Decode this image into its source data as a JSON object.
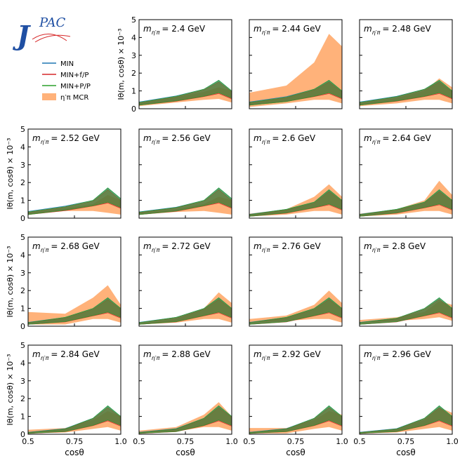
{
  "chart_data": {
    "type": "band",
    "logo": [
      "J",
      "PAC"
    ],
    "title_symbol": "m",
    "title_subscript": "η′π",
    "ylabel": "Iθ(m, cosθ) × 10⁻³",
    "xlabel": "cosθ",
    "xlim": [
      0.5,
      1
    ],
    "xticks": [
      0.5,
      0.75,
      {
        "value": 1,
        "label": "1.0"
      }
    ],
    "ylim": [
      0,
      5
    ],
    "yticks": [
      0,
      1,
      2,
      3,
      4,
      5
    ],
    "x": [
      0.5,
      0.7,
      0.85,
      0.93,
      1
    ],
    "legend": [
      {
        "name": "MIN",
        "color": "#1f77b4"
      },
      {
        "name": "MIN+f/P",
        "color": "#d62728"
      },
      {
        "name": "MIN+P/P",
        "color": "#2ca02c"
      },
      {
        "name": "η′π MCR",
        "color": "#ffb27a"
      }
    ],
    "panels": [
      {
        "title": "= 2.4 GeV",
        "series": [
          {
            "lower": [
              0.22,
              0.45,
              0.7,
              0.9,
              0.6
            ],
            "upper": [
              0.38,
              0.72,
              1.1,
              1.6,
              1.0
            ]
          },
          {
            "lower": [
              0.2,
              0.42,
              0.68,
              0.85,
              0.55
            ],
            "upper": [
              0.33,
              0.66,
              1.05,
              1.5,
              0.95
            ]
          },
          {
            "lower": [
              0.2,
              0.44,
              0.7,
              0.9,
              0.6
            ],
            "upper": [
              0.35,
              0.7,
              1.1,
              1.6,
              1.0
            ]
          },
          {
            "lower": [
              0.15,
              0.35,
              0.5,
              0.55,
              0.35
            ],
            "upper": [
              0.3,
              0.65,
              0.95,
              1.2,
              1.0
            ]
          }
        ]
      },
      {
        "title": "= 2.44 GeV",
        "series": [
          {
            "lower": [
              0.22,
              0.42,
              0.7,
              0.9,
              0.6
            ],
            "upper": [
              0.38,
              0.68,
              1.1,
              1.6,
              1.0
            ]
          },
          {
            "lower": [
              0.2,
              0.4,
              0.68,
              0.85,
              0.55
            ],
            "upper": [
              0.33,
              0.62,
              1.05,
              1.5,
              0.95
            ]
          },
          {
            "lower": [
              0.2,
              0.4,
              0.7,
              0.9,
              0.6
            ],
            "upper": [
              0.35,
              0.65,
              1.1,
              1.6,
              1.0
            ]
          },
          {
            "lower": [
              0.1,
              0.3,
              0.5,
              0.5,
              0.3
            ],
            "upper": [
              0.9,
              1.3,
              2.6,
              4.2,
              3.5
            ]
          }
        ]
      },
      {
        "title": "= 2.48 GeV",
        "series": [
          {
            "lower": [
              0.22,
              0.45,
              0.7,
              0.9,
              0.6
            ],
            "upper": [
              0.38,
              0.7,
              1.1,
              1.6,
              1.0
            ]
          },
          {
            "lower": [
              0.2,
              0.42,
              0.68,
              0.85,
              0.55
            ],
            "upper": [
              0.33,
              0.65,
              1.05,
              1.5,
              0.95
            ]
          },
          {
            "lower": [
              0.2,
              0.44,
              0.7,
              0.9,
              0.6
            ],
            "upper": [
              0.35,
              0.68,
              1.1,
              1.6,
              1.0
            ]
          },
          {
            "lower": [
              0.15,
              0.3,
              0.5,
              0.5,
              0.3
            ],
            "upper": [
              0.3,
              0.6,
              1.0,
              1.7,
              1.2
            ]
          }
        ]
      },
      {
        "title": "= 2.52 GeV",
        "series": [
          {
            "lower": [
              0.22,
              0.45,
              0.7,
              0.9,
              0.6
            ],
            "upper": [
              0.38,
              0.68,
              1.0,
              1.7,
              1.1
            ]
          },
          {
            "lower": [
              0.2,
              0.42,
              0.68,
              0.85,
              0.55
            ],
            "upper": [
              0.33,
              0.62,
              0.95,
              1.6,
              1.0
            ]
          },
          {
            "lower": [
              0.2,
              0.45,
              0.7,
              0.9,
              0.6
            ],
            "upper": [
              0.35,
              0.65,
              1.0,
              1.7,
              1.1
            ]
          },
          {
            "lower": [
              0.2,
              0.4,
              0.4,
              0.3,
              0.2
            ],
            "upper": [
              0.3,
              0.55,
              0.8,
              1.3,
              1.0
            ]
          }
        ]
      },
      {
        "title": "= 2.56 GeV",
        "series": [
          {
            "lower": [
              0.22,
              0.4,
              0.7,
              0.9,
              0.6
            ],
            "upper": [
              0.36,
              0.62,
              1.0,
              1.7,
              1.1
            ]
          },
          {
            "lower": [
              0.2,
              0.38,
              0.68,
              0.85,
              0.55
            ],
            "upper": [
              0.32,
              0.58,
              0.95,
              1.6,
              1.0
            ]
          },
          {
            "lower": [
              0.2,
              0.4,
              0.7,
              0.9,
              0.6
            ],
            "upper": [
              0.34,
              0.6,
              1.0,
              1.7,
              1.1
            ]
          },
          {
            "lower": [
              0.2,
              0.35,
              0.4,
              0.3,
              0.2
            ],
            "upper": [
              0.3,
              0.5,
              0.8,
              1.2,
              1.0
            ]
          }
        ]
      },
      {
        "title": "= 2.6 GeV",
        "series": [
          {
            "lower": [
              0.12,
              0.3,
              0.6,
              0.8,
              0.5
            ],
            "upper": [
              0.22,
              0.5,
              0.9,
              1.6,
              1.0
            ]
          },
          {
            "lower": [
              0.1,
              0.28,
              0.58,
              0.75,
              0.45
            ],
            "upper": [
              0.2,
              0.46,
              0.85,
              1.5,
              0.95
            ]
          },
          {
            "lower": [
              0.1,
              0.3,
              0.6,
              0.8,
              0.5
            ],
            "upper": [
              0.2,
              0.5,
              0.9,
              1.6,
              1.0
            ]
          },
          {
            "lower": [
              0.1,
              0.2,
              0.4,
              0.4,
              0.2
            ],
            "upper": [
              0.25,
              0.5,
              1.2,
              1.9,
              1.2
            ]
          }
        ]
      },
      {
        "title": "= 2.64 GeV",
        "series": [
          {
            "lower": [
              0.12,
              0.3,
              0.6,
              0.8,
              0.5
            ],
            "upper": [
              0.22,
              0.5,
              0.9,
              1.6,
              1.0
            ]
          },
          {
            "lower": [
              0.1,
              0.28,
              0.58,
              0.75,
              0.45
            ],
            "upper": [
              0.2,
              0.46,
              0.85,
              1.5,
              0.95
            ]
          },
          {
            "lower": [
              0.1,
              0.3,
              0.6,
              0.8,
              0.5
            ],
            "upper": [
              0.2,
              0.5,
              0.9,
              1.6,
              1.0
            ]
          },
          {
            "lower": [
              0.1,
              0.2,
              0.4,
              0.4,
              0.2
            ],
            "upper": [
              0.25,
              0.5,
              1.0,
              2.1,
              1.3
            ]
          }
        ]
      },
      {
        "title": "= 2.68 GeV",
        "series": [
          {
            "lower": [
              0.12,
              0.25,
              0.6,
              0.8,
              0.5
            ],
            "upper": [
              0.22,
              0.5,
              1.0,
              1.6,
              1.0
            ]
          },
          {
            "lower": [
              0.1,
              0.24,
              0.58,
              0.75,
              0.45
            ],
            "upper": [
              0.2,
              0.46,
              0.95,
              1.5,
              0.95
            ]
          },
          {
            "lower": [
              0.1,
              0.25,
              0.6,
              0.8,
              0.5
            ],
            "upper": [
              0.2,
              0.5,
              1.0,
              1.6,
              1.0
            ]
          },
          {
            "lower": [
              0.1,
              0.1,
              0.4,
              0.4,
              0.2
            ],
            "upper": [
              0.8,
              0.7,
              1.6,
              2.3,
              1.2
            ]
          }
        ]
      },
      {
        "title": "= 2.72 GeV",
        "series": [
          {
            "lower": [
              0.12,
              0.25,
              0.6,
              0.8,
              0.5
            ],
            "upper": [
              0.22,
              0.5,
              1.0,
              1.6,
              1.0
            ]
          },
          {
            "lower": [
              0.1,
              0.24,
              0.58,
              0.75,
              0.45
            ],
            "upper": [
              0.2,
              0.46,
              0.95,
              1.5,
              0.95
            ]
          },
          {
            "lower": [
              0.1,
              0.25,
              0.6,
              0.8,
              0.5
            ],
            "upper": [
              0.2,
              0.5,
              1.0,
              1.6,
              1.0
            ]
          },
          {
            "lower": [
              0.1,
              0.2,
              0.4,
              0.4,
              0.2
            ],
            "upper": [
              0.15,
              0.4,
              1.0,
              1.9,
              1.3
            ]
          }
        ]
      },
      {
        "title": "= 2.76 GeV",
        "series": [
          {
            "lower": [
              0.12,
              0.25,
              0.6,
              0.8,
              0.5
            ],
            "upper": [
              0.22,
              0.5,
              1.0,
              1.6,
              1.0
            ]
          },
          {
            "lower": [
              0.1,
              0.24,
              0.58,
              0.75,
              0.45
            ],
            "upper": [
              0.2,
              0.46,
              0.95,
              1.5,
              0.95
            ]
          },
          {
            "lower": [
              0.1,
              0.25,
              0.6,
              0.8,
              0.5
            ],
            "upper": [
              0.2,
              0.5,
              1.0,
              1.6,
              1.0
            ]
          },
          {
            "lower": [
              0.2,
              0.3,
              0.4,
              0.4,
              0.2
            ],
            "upper": [
              0.4,
              0.6,
              1.2,
              2.0,
              1.3
            ]
          }
        ]
      },
      {
        "title": "= 2.8 GeV",
        "series": [
          {
            "lower": [
              0.12,
              0.25,
              0.6,
              0.8,
              0.5
            ],
            "upper": [
              0.22,
              0.45,
              1.0,
              1.6,
              1.0
            ]
          },
          {
            "lower": [
              0.1,
              0.24,
              0.58,
              0.75,
              0.45
            ],
            "upper": [
              0.2,
              0.42,
              0.95,
              1.5,
              0.95
            ]
          },
          {
            "lower": [
              0.1,
              0.25,
              0.6,
              0.8,
              0.5
            ],
            "upper": [
              0.2,
              0.45,
              1.0,
              1.6,
              1.0
            ]
          },
          {
            "lower": [
              0.2,
              0.3,
              0.4,
              0.5,
              0.3
            ],
            "upper": [
              0.35,
              0.5,
              0.8,
              1.4,
              1.2
            ]
          }
        ]
      },
      {
        "title": "= 2.84 GeV",
        "series": [
          {
            "lower": [
              0.05,
              0.15,
              0.5,
              0.8,
              0.5
            ],
            "upper": [
              0.12,
              0.32,
              0.9,
              1.6,
              1.0
            ]
          },
          {
            "lower": [
              0.04,
              0.14,
              0.48,
              0.75,
              0.45
            ],
            "upper": [
              0.1,
              0.3,
              0.85,
              1.5,
              0.95
            ]
          },
          {
            "lower": [
              0.05,
              0.15,
              0.5,
              0.8,
              0.5
            ],
            "upper": [
              0.1,
              0.3,
              0.9,
              1.6,
              1.0
            ]
          },
          {
            "lower": [
              0.05,
              0.1,
              0.3,
              0.4,
              0.2
            ],
            "upper": [
              0.25,
              0.35,
              0.8,
              1.3,
              1.0
            ]
          }
        ]
      },
      {
        "title": "= 2.88 GeV",
        "series": [
          {
            "lower": [
              0.05,
              0.15,
              0.5,
              0.8,
              0.5
            ],
            "upper": [
              0.12,
              0.32,
              0.9,
              1.6,
              1.0
            ]
          },
          {
            "lower": [
              0.04,
              0.14,
              0.48,
              0.75,
              0.45
            ],
            "upper": [
              0.1,
              0.3,
              0.85,
              1.5,
              0.95
            ]
          },
          {
            "lower": [
              0.05,
              0.15,
              0.5,
              0.8,
              0.5
            ],
            "upper": [
              0.1,
              0.3,
              0.9,
              1.6,
              1.0
            ]
          },
          {
            "lower": [
              0.05,
              0.15,
              0.4,
              0.4,
              0.2
            ],
            "upper": [
              0.2,
              0.4,
              1.1,
              1.8,
              1.0
            ]
          }
        ]
      },
      {
        "title": "= 2.92 GeV",
        "series": [
          {
            "lower": [
              0.05,
              0.15,
              0.5,
              0.8,
              0.5
            ],
            "upper": [
              0.12,
              0.32,
              0.9,
              1.6,
              1.0
            ]
          },
          {
            "lower": [
              0.04,
              0.14,
              0.48,
              0.75,
              0.45
            ],
            "upper": [
              0.1,
              0.3,
              0.85,
              1.5,
              0.95
            ]
          },
          {
            "lower": [
              0.05,
              0.15,
              0.5,
              0.8,
              0.5
            ],
            "upper": [
              0.1,
              0.3,
              0.9,
              1.6,
              1.0
            ]
          },
          {
            "lower": [
              0.05,
              0.05,
              0.3,
              0.4,
              0.2
            ],
            "upper": [
              0.35,
              0.35,
              0.8,
              1.3,
              1.1
            ]
          }
        ]
      },
      {
        "title": "= 2.96 GeV",
        "series": [
          {
            "lower": [
              0.05,
              0.15,
              0.5,
              0.8,
              0.5
            ],
            "upper": [
              0.12,
              0.32,
              0.9,
              1.6,
              1.0
            ]
          },
          {
            "lower": [
              0.04,
              0.14,
              0.48,
              0.75,
              0.45
            ],
            "upper": [
              0.1,
              0.3,
              0.85,
              1.5,
              0.95
            ]
          },
          {
            "lower": [
              0.05,
              0.15,
              0.5,
              0.8,
              0.5
            ],
            "upper": [
              0.1,
              0.3,
              0.9,
              1.6,
              1.0
            ]
          },
          {
            "lower": [
              0.05,
              0.1,
              0.3,
              0.4,
              0.2
            ],
            "upper": [
              0.1,
              0.3,
              0.8,
              1.5,
              1.2
            ]
          }
        ]
      }
    ]
  }
}
